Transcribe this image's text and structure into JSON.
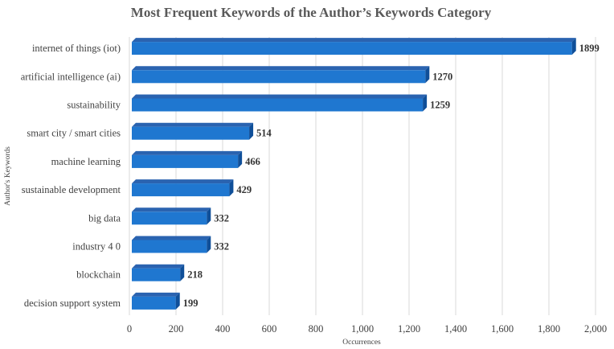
{
  "chart_data": {
    "type": "bar",
    "orientation": "horizontal",
    "title": "Most Frequent Keywords of the Author’s Keywords Category",
    "xlabel": "Occurrences",
    "ylabel": "Author's Keywords",
    "xlim": [
      0,
      2000
    ],
    "xticks": [
      0,
      200,
      400,
      600,
      800,
      1000,
      1200,
      1400,
      1600,
      1800,
      2000
    ],
    "xtick_labels": [
      "0",
      "200",
      "400",
      "600",
      "800",
      "1,000",
      "1,200",
      "1,400",
      "1,600",
      "1,800",
      "2,000"
    ],
    "categories": [
      "internet of things (iot)",
      "artificial intelligence (ai)",
      "sustainability",
      "smart city / smart cities",
      "machine learning",
      "sustainable development",
      "big data",
      "industry 4 0",
      "blockchain",
      "decision support system"
    ],
    "values": [
      1899,
      1270,
      1259,
      514,
      466,
      429,
      332,
      332,
      218,
      199
    ],
    "grid": true,
    "legend": "none",
    "colors": {
      "bar_front": "#1f77d0",
      "bar_side": "#0f4f99",
      "bar_top": "#2a63b0"
    }
  }
}
